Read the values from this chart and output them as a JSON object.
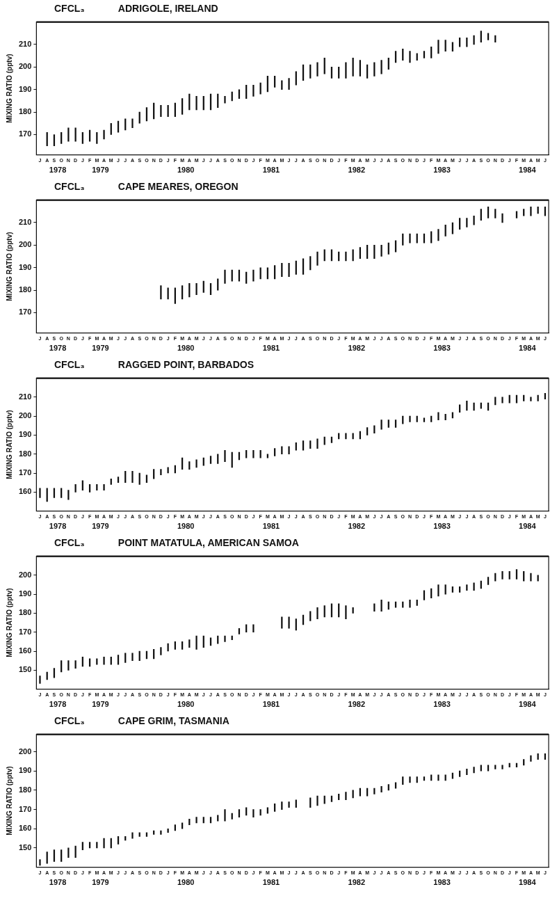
{
  "chart_data": [
    {
      "type": "bar",
      "title": "CFCL₃",
      "subtitle": "ADRIGOLE, IRELAND",
      "ylabel": "MIXING RATIO (pptv)",
      "color": "#111111",
      "grid": false,
      "legend": false,
      "ylim": [
        161,
        220
      ],
      "yticks": [
        170,
        180,
        190,
        200,
        210
      ],
      "annotations": [
        "1978",
        "1979",
        "1980",
        "1981",
        "1982",
        "1983",
        "1984"
      ],
      "categories": [
        "J",
        "A",
        "S",
        "O",
        "N",
        "D",
        "J",
        "F",
        "M",
        "A",
        "M",
        "J",
        "J",
        "A",
        "S",
        "O",
        "N",
        "D",
        "J",
        "F",
        "M",
        "A",
        "M",
        "J",
        "J",
        "A",
        "S",
        "O",
        "N",
        "D",
        "J",
        "F",
        "M",
        "A",
        "M",
        "J",
        "J",
        "A",
        "S",
        "O",
        "N",
        "D",
        "J",
        "F",
        "M",
        "A",
        "M",
        "J",
        "J",
        "A",
        "S",
        "O",
        "N",
        "D",
        "J",
        "F",
        "M",
        "A",
        "M",
        "J",
        "J",
        "A",
        "S",
        "O",
        "N",
        "D",
        "J",
        "F",
        "M",
        "A",
        "M",
        "J"
      ],
      "base": [
        null,
        165,
        165,
        166,
        167,
        167,
        166,
        167,
        166,
        168,
        170,
        171,
        172,
        173,
        175,
        176,
        177,
        178,
        178,
        178,
        179,
        181,
        181,
        181,
        181,
        182,
        184,
        185,
        186,
        186,
        187,
        188,
        189,
        191,
        190,
        190,
        192,
        194,
        195,
        196,
        197,
        195,
        195,
        195,
        196,
        196,
        195,
        196,
        197,
        199,
        202,
        203,
        202,
        203,
        204,
        204,
        206,
        207,
        207,
        209,
        209,
        210,
        211,
        212,
        211,
        null,
        null,
        null,
        null,
        null,
        null,
        null
      ],
      "values": [
        null,
        6,
        5,
        5,
        6,
        6,
        5,
        5,
        5,
        4,
        5,
        5,
        5,
        4,
        5,
        6,
        7,
        5,
        5,
        6,
        7,
        7,
        6,
        6,
        7,
        6,
        3,
        4,
        4,
        6,
        5,
        5,
        7,
        5,
        4,
        5,
        6,
        7,
        6,
        6,
        7,
        5,
        5,
        7,
        8,
        7,
        6,
        6,
        6,
        5,
        5,
        5,
        5,
        3,
        3,
        5,
        6,
        5,
        4,
        4,
        4,
        4,
        5,
        3,
        3,
        null,
        null,
        null,
        null,
        null,
        null,
        null
      ]
    },
    {
      "type": "bar",
      "title": "CFCL₃",
      "subtitle": "CAPE MEARES, OREGON",
      "ylabel": "MIXING RATIO (pptv)",
      "color": "#111111",
      "grid": false,
      "legend": false,
      "ylim": [
        161,
        220
      ],
      "yticks": [
        170,
        180,
        190,
        200,
        210
      ],
      "annotations": [
        "1978",
        "1979",
        "1980",
        "1981",
        "1982",
        "1983",
        "1984"
      ],
      "categories": [
        "J",
        "A",
        "S",
        "O",
        "N",
        "D",
        "J",
        "F",
        "M",
        "A",
        "M",
        "J",
        "J",
        "A",
        "S",
        "O",
        "N",
        "D",
        "J",
        "F",
        "M",
        "A",
        "M",
        "J",
        "J",
        "A",
        "S",
        "O",
        "N",
        "D",
        "J",
        "F",
        "M",
        "A",
        "M",
        "J",
        "J",
        "A",
        "S",
        "O",
        "N",
        "D",
        "J",
        "F",
        "M",
        "A",
        "M",
        "J",
        "J",
        "A",
        "S",
        "O",
        "N",
        "D",
        "J",
        "F",
        "M",
        "A",
        "M",
        "J",
        "J",
        "A",
        "S",
        "O",
        "N",
        "D",
        "J",
        "F",
        "M",
        "A",
        "M",
        "J"
      ],
      "base": [
        null,
        null,
        null,
        null,
        null,
        null,
        null,
        null,
        null,
        null,
        null,
        null,
        null,
        null,
        null,
        null,
        null,
        176,
        176,
        174,
        176,
        177,
        178,
        179,
        178,
        180,
        183,
        184,
        184,
        183,
        184,
        185,
        185,
        185,
        186,
        186,
        187,
        187,
        189,
        191,
        193,
        193,
        193,
        193,
        193,
        194,
        194,
        194,
        195,
        196,
        197,
        200,
        201,
        201,
        201,
        201,
        202,
        204,
        205,
        207,
        208,
        209,
        211,
        212,
        212,
        210,
        null,
        212,
        213,
        213,
        214,
        213
      ],
      "values": [
        null,
        null,
        null,
        null,
        null,
        null,
        null,
        null,
        null,
        null,
        null,
        null,
        null,
        null,
        null,
        null,
        null,
        6,
        5,
        7,
        6,
        6,
        5,
        5,
        5,
        5,
        6,
        5,
        5,
        5,
        5,
        5,
        5,
        6,
        6,
        6,
        6,
        7,
        6,
        6,
        5,
        5,
        4,
        4,
        5,
        5,
        6,
        6,
        5,
        5,
        5,
        5,
        4,
        4,
        4,
        5,
        5,
        5,
        5,
        5,
        4,
        4,
        5,
        5,
        4,
        4,
        null,
        3,
        3,
        4,
        3,
        4
      ]
    },
    {
      "type": "bar",
      "title": "CFCL₃",
      "subtitle": "RAGGED POINT, BARBADOS",
      "ylabel": "MIXING RATIO (pptv)",
      "color": "#111111",
      "grid": false,
      "legend": false,
      "ylim": [
        150,
        220
      ],
      "yticks": [
        160,
        170,
        180,
        190,
        200,
        210
      ],
      "annotations": [
        "1978",
        "1979",
        "1980",
        "1981",
        "1982",
        "1983",
        "1984"
      ],
      "categories": [
        "J",
        "A",
        "S",
        "O",
        "N",
        "D",
        "J",
        "F",
        "M",
        "A",
        "M",
        "J",
        "J",
        "A",
        "S",
        "O",
        "N",
        "D",
        "J",
        "F",
        "M",
        "A",
        "M",
        "J",
        "J",
        "A",
        "S",
        "O",
        "N",
        "D",
        "J",
        "F",
        "M",
        "A",
        "M",
        "J",
        "J",
        "A",
        "S",
        "O",
        "N",
        "D",
        "J",
        "F",
        "M",
        "A",
        "M",
        "J",
        "J",
        "A",
        "S",
        "O",
        "N",
        "D",
        "J",
        "F",
        "M",
        "A",
        "M",
        "J",
        "J",
        "A",
        "S",
        "O",
        "N",
        "D",
        "J",
        "F",
        "M",
        "A",
        "M",
        "J"
      ],
      "base": [
        157,
        155,
        157,
        157,
        156,
        160,
        161,
        160,
        161,
        161,
        164,
        165,
        165,
        165,
        164,
        165,
        167,
        169,
        170,
        170,
        172,
        172,
        173,
        174,
        175,
        175,
        176,
        173,
        177,
        178,
        178,
        178,
        178,
        179,
        180,
        180,
        182,
        182,
        183,
        183,
        185,
        186,
        188,
        188,
        188,
        188,
        190,
        191,
        193,
        194,
        194,
        196,
        197,
        197,
        197,
        197,
        198,
        198,
        199,
        202,
        203,
        203,
        204,
        203,
        206,
        207,
        207,
        207,
        208,
        208,
        208,
        209
      ],
      "values": [
        5,
        7,
        5,
        5,
        5,
        4,
        5,
        4,
        3,
        3,
        3,
        3,
        6,
        6,
        6,
        4,
        5,
        3,
        3,
        4,
        6,
        4,
        4,
        4,
        4,
        5,
        6,
        8,
        4,
        4,
        4,
        4,
        2,
        4,
        4,
        4,
        4,
        5,
        4,
        5,
        4,
        3,
        3,
        3,
        3,
        4,
        4,
        4,
        5,
        4,
        4,
        4,
        3,
        3,
        2,
        3,
        4,
        3,
        3,
        4,
        5,
        4,
        3,
        4,
        4,
        3,
        4,
        4,
        3,
        2,
        3,
        3
      ]
    },
    {
      "type": "bar",
      "title": "CFCL₃",
      "subtitle": "POINT MATATULA, AMERICAN SAMOA",
      "ylabel": "MIXING RATIO (pptv)",
      "color": "#111111",
      "grid": false,
      "legend": false,
      "ylim": [
        140,
        210
      ],
      "yticks": [
        150,
        160,
        170,
        180,
        190,
        200
      ],
      "annotations": [
        "1978",
        "1979",
        "1980",
        "1981",
        "1982",
        "1983",
        "1984"
      ],
      "categories": [
        "J",
        "A",
        "S",
        "O",
        "N",
        "D",
        "J",
        "F",
        "M",
        "A",
        "M",
        "J",
        "J",
        "A",
        "S",
        "O",
        "N",
        "D",
        "J",
        "F",
        "M",
        "A",
        "M",
        "J",
        "J",
        "A",
        "S",
        "O",
        "N",
        "D",
        "J",
        "F",
        "M",
        "A",
        "M",
        "J",
        "J",
        "A",
        "S",
        "O",
        "N",
        "D",
        "J",
        "F",
        "M",
        "A",
        "M",
        "J",
        "J",
        "A",
        "S",
        "O",
        "N",
        "D",
        "J",
        "F",
        "M",
        "A",
        "M",
        "J",
        "J",
        "A",
        "S",
        "O",
        "N",
        "D",
        "J",
        "F",
        "M",
        "A",
        "M",
        "J"
      ],
      "base": [
        143,
        145,
        146,
        149,
        150,
        151,
        152,
        152,
        153,
        153,
        153,
        153,
        154,
        155,
        155,
        156,
        156,
        158,
        160,
        161,
        161,
        162,
        161,
        162,
        163,
        164,
        165,
        166,
        169,
        170,
        170,
        null,
        null,
        null,
        172,
        172,
        171,
        174,
        176,
        177,
        178,
        178,
        178,
        177,
        180,
        null,
        null,
        181,
        181,
        182,
        183,
        183,
        183,
        184,
        187,
        188,
        189,
        190,
        191,
        191,
        192,
        192,
        193,
        195,
        197,
        198,
        198,
        198,
        197,
        197,
        197,
        null
      ],
      "values": [
        4,
        4,
        5,
        6,
        5,
        4,
        5,
        4,
        3,
        4,
        4,
        5,
        5,
        4,
        5,
        4,
        5,
        4,
        4,
        4,
        4,
        4,
        7,
        6,
        4,
        4,
        3,
        2,
        3,
        4,
        4,
        null,
        null,
        null,
        6,
        6,
        6,
        5,
        5,
        6,
        6,
        7,
        7,
        7,
        3,
        null,
        null,
        4,
        6,
        4,
        3,
        3,
        4,
        3,
        5,
        5,
        6,
        5,
        3,
        3,
        3,
        4,
        4,
        4,
        4,
        4,
        4,
        5,
        5,
        4,
        3,
        null
      ]
    },
    {
      "type": "bar",
      "title": "CFCL₃",
      "subtitle": "CAPE GRIM, TASMANIA",
      "ylabel": "MIXING RATIO (pptv)",
      "color": "#111111",
      "grid": false,
      "legend": false,
      "ylim": [
        140,
        209
      ],
      "yticks": [
        150,
        160,
        170,
        180,
        190,
        200
      ],
      "annotations": [
        "1978",
        "1979",
        "1980",
        "1981",
        "1982",
        "1983",
        "1984"
      ],
      "categories": [
        "J",
        "A",
        "S",
        "O",
        "N",
        "D",
        "J",
        "F",
        "M",
        "A",
        "M",
        "J",
        "J",
        "A",
        "S",
        "O",
        "N",
        "D",
        "J",
        "F",
        "M",
        "A",
        "M",
        "J",
        "J",
        "A",
        "S",
        "O",
        "N",
        "D",
        "J",
        "F",
        "M",
        "A",
        "M",
        "J",
        "J",
        "A",
        "S",
        "O",
        "N",
        "D",
        "J",
        "F",
        "M",
        "A",
        "M",
        "J",
        "J",
        "A",
        "S",
        "O",
        "N",
        "D",
        "J",
        "F",
        "M",
        "A",
        "M",
        "J",
        "J",
        "A",
        "S",
        "O",
        "N",
        "D",
        "J",
        "F",
        "M",
        "A",
        "M",
        "J"
      ],
      "base": [
        141,
        142,
        143,
        143,
        145,
        145,
        149,
        150,
        150,
        150,
        150,
        152,
        154,
        155,
        156,
        156,
        157,
        157,
        158,
        159,
        160,
        162,
        163,
        163,
        163,
        164,
        164,
        165,
        166,
        167,
        166,
        167,
        168,
        169,
        170,
        171,
        171,
        null,
        171,
        172,
        173,
        174,
        175,
        175,
        176,
        177,
        177,
        178,
        179,
        180,
        181,
        183,
        184,
        184,
        185,
        185,
        185,
        185,
        186,
        187,
        188,
        189,
        190,
        190,
        191,
        191,
        192,
        192,
        193,
        195,
        196,
        196
      ],
      "values": [
        3,
        6,
        6,
        6,
        5,
        6,
        4,
        3,
        3,
        5,
        5,
        4,
        2,
        3,
        2,
        2,
        2,
        2,
        2,
        3,
        3,
        3,
        3,
        3,
        3,
        3,
        6,
        3,
        4,
        4,
        4,
        3,
        3,
        4,
        4,
        3,
        4,
        null,
        5,
        5,
        4,
        3,
        3,
        4,
        4,
        4,
        4,
        3,
        3,
        3,
        3,
        4,
        3,
        3,
        2,
        3,
        3,
        3,
        3,
        3,
        3,
        3,
        3,
        3,
        2,
        2,
        2,
        2,
        3,
        3,
        3,
        3
      ]
    }
  ]
}
